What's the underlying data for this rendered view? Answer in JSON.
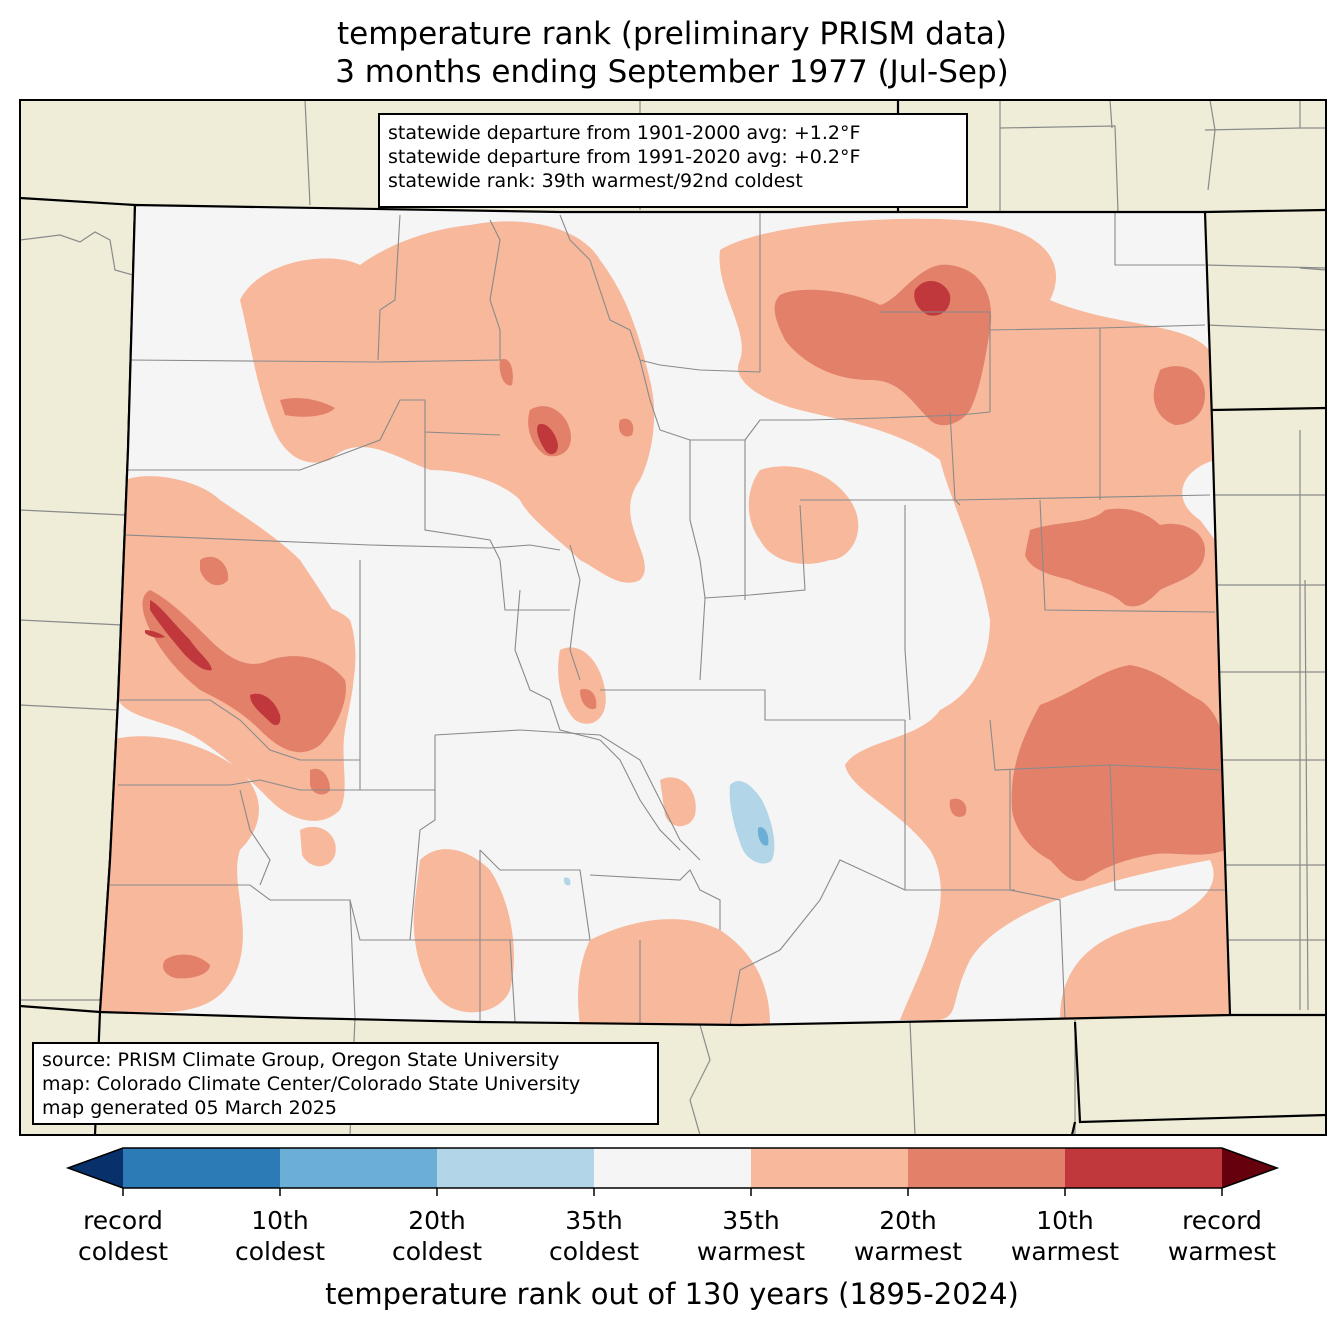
{
  "title": {
    "line1": "temperature rank (preliminary PRISM data)",
    "line2": "3 months ending September 1977 (Jul-Sep)"
  },
  "stats": {
    "line1": "statewide departure from 1901-2000 avg: +1.2°F",
    "line2": "statewide departure from 1991-2020 avg: +0.2°F",
    "line3": "statewide rank: 39th warmest/92nd coldest"
  },
  "source": {
    "line1": "source: PRISM Climate Group, Oregon State University",
    "line2": "map: Colorado Climate Center/Colorado State University",
    "line3": "map generated 05 March 2025"
  },
  "colorbar": {
    "labels": [
      {
        "l1": "record",
        "l2": "coldest"
      },
      {
        "l1": "10th",
        "l2": "coldest"
      },
      {
        "l1": "20th",
        "l2": "coldest"
      },
      {
        "l1": "35th",
        "l2": "coldest"
      },
      {
        "l1": "35th",
        "l2": "warmest"
      },
      {
        "l1": "20th",
        "l2": "warmest"
      },
      {
        "l1": "10th",
        "l2": "warmest"
      },
      {
        "l1": "record",
        "l2": "warmest"
      }
    ],
    "colors": [
      "#08306b",
      "#2c7bb6",
      "#6baed6",
      "#b2d5e8",
      "#f5f5f5",
      "#f7b89c",
      "#e2806a",
      "#c0383c",
      "#67000d"
    ],
    "axis_label": "temperature rank out of 130 years (1895-2024)"
  },
  "map_colors": {
    "background": "#efedd8",
    "state_fill": "#f5f5f5",
    "near_warm": "#f7b89c",
    "warm": "#e2806a",
    "very_warm": "#c0383c",
    "cool": "#b2d5e8",
    "colder": "#6baed6"
  }
}
